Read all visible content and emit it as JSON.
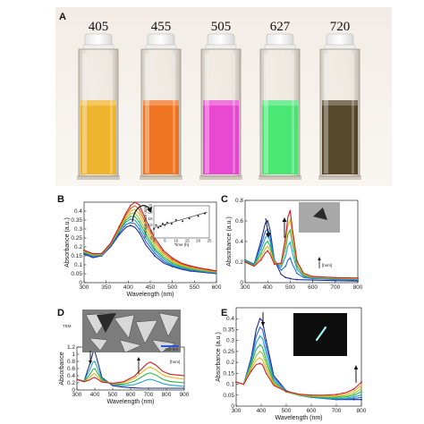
{
  "panels": [
    "A",
    "B",
    "C",
    "D",
    "E"
  ],
  "panelA": {
    "labels": [
      "405",
      "455",
      "505",
      "627",
      "720"
    ],
    "liquid_colors": [
      "#f0b020",
      "#f06a12",
      "#e83ad0",
      "#3ce66a",
      "#4a3a1c"
    ]
  },
  "insetB": {
    "ylabel": "Average Size (nm)",
    "xlabel": "Time (h)"
  },
  "labelC": "[hom]",
  "labelD": {
    "tem": "TEM",
    "scale": "200 nm",
    "arrow": "[hom]"
  },
  "chart_data": [
    {
      "panel": "B",
      "type": "line",
      "xlabel": "Wavelength (nm)",
      "ylabel": "Absorbance (a.u.)",
      "xlim": [
        300,
        600
      ],
      "ylim": [
        0,
        0.45
      ],
      "xticks": [
        300,
        350,
        400,
        450,
        500,
        550,
        600
      ],
      "yticks": [
        0,
        0.05,
        0.1,
        0.15,
        0.2,
        0.25,
        0.3,
        0.35,
        0.4
      ],
      "x": [
        300,
        320,
        340,
        360,
        380,
        395,
        405,
        415,
        425,
        440,
        460,
        480,
        500,
        520,
        540,
        560,
        580,
        600
      ],
      "series": [
        {
          "color": "#1f2b8a",
          "values": [
            0.16,
            0.14,
            0.15,
            0.2,
            0.27,
            0.31,
            0.32,
            0.31,
            0.28,
            0.21,
            0.15,
            0.11,
            0.09,
            0.075,
            0.065,
            0.06,
            0.055,
            0.05
          ]
        },
        {
          "color": "#2a6ad8",
          "values": [
            0.165,
            0.145,
            0.152,
            0.205,
            0.28,
            0.325,
            0.335,
            0.33,
            0.3,
            0.23,
            0.165,
            0.12,
            0.095,
            0.08,
            0.07,
            0.064,
            0.058,
            0.053
          ]
        },
        {
          "color": "#23a3c8",
          "values": [
            0.17,
            0.15,
            0.155,
            0.21,
            0.29,
            0.34,
            0.355,
            0.35,
            0.32,
            0.25,
            0.18,
            0.13,
            0.1,
            0.085,
            0.074,
            0.067,
            0.061,
            0.056
          ]
        },
        {
          "color": "#2cb24a",
          "values": [
            0.172,
            0.152,
            0.157,
            0.212,
            0.295,
            0.35,
            0.37,
            0.37,
            0.34,
            0.27,
            0.19,
            0.14,
            0.108,
            0.09,
            0.078,
            0.07,
            0.064,
            0.058
          ]
        },
        {
          "color": "#9cc43a",
          "values": [
            0.175,
            0.155,
            0.158,
            0.214,
            0.3,
            0.36,
            0.385,
            0.39,
            0.36,
            0.29,
            0.205,
            0.15,
            0.115,
            0.095,
            0.082,
            0.073,
            0.066,
            0.06
          ]
        },
        {
          "color": "#e8b420",
          "values": [
            0.178,
            0.157,
            0.16,
            0.216,
            0.305,
            0.37,
            0.4,
            0.41,
            0.385,
            0.31,
            0.22,
            0.16,
            0.123,
            0.1,
            0.086,
            0.076,
            0.069,
            0.062
          ]
        },
        {
          "color": "#e0641c",
          "values": [
            0.18,
            0.16,
            0.162,
            0.218,
            0.31,
            0.38,
            0.415,
            0.43,
            0.41,
            0.33,
            0.235,
            0.17,
            0.13,
            0.105,
            0.09,
            0.08,
            0.072,
            0.064
          ]
        },
        {
          "color": "#c81e28",
          "values": [
            0.182,
            0.162,
            0.163,
            0.22,
            0.315,
            0.39,
            0.43,
            0.45,
            0.435,
            0.35,
            0.25,
            0.18,
            0.138,
            0.11,
            0.094,
            0.083,
            0.074,
            0.066
          ]
        }
      ],
      "inset": {
        "type": "scatter",
        "xlim": [
          0,
          25
        ],
        "ylim": [
          0,
          25
        ],
        "xticks": [
          0,
          5,
          10,
          15,
          20,
          25
        ],
        "yticks": [
          0,
          5,
          10,
          15,
          20,
          25
        ],
        "x": [
          0,
          1,
          2,
          3,
          4,
          5,
          6,
          8,
          10,
          13,
          16,
          20,
          23
        ],
        "y": [
          7,
          10,
          8,
          9,
          11,
          10,
          12,
          11,
          14,
          13,
          15,
          17,
          19
        ],
        "fit": [
          [
            0,
            8
          ],
          [
            24,
            20
          ]
        ]
      }
    },
    {
      "panel": "C",
      "type": "line",
      "ylabel": "Absorbance (a.u.)",
      "xlim": [
        300,
        800
      ],
      "ylim": [
        0,
        0.8
      ],
      "xticks": [
        300,
        400,
        500,
        600,
        700,
        800
      ],
      "yticks": [
        0,
        0.2,
        0.4,
        0.6,
        0.8
      ],
      "x": [
        300,
        340,
        370,
        390,
        400,
        410,
        430,
        460,
        480,
        490,
        500,
        510,
        530,
        560,
        600,
        650,
        700,
        750,
        800
      ],
      "series": [
        {
          "color": "#1f2b8a",
          "values": [
            0.22,
            0.18,
            0.4,
            0.58,
            0.6,
            0.52,
            0.22,
            0.08,
            0.05,
            0.045,
            0.04,
            0.035,
            0.03,
            0.028,
            0.025,
            0.022,
            0.02,
            0.018,
            0.016
          ]
        },
        {
          "color": "#2a6ad8",
          "values": [
            0.22,
            0.18,
            0.36,
            0.5,
            0.52,
            0.46,
            0.22,
            0.12,
            0.16,
            0.22,
            0.24,
            0.18,
            0.09,
            0.05,
            0.04,
            0.035,
            0.03,
            0.028,
            0.025
          ]
        },
        {
          "color": "#23a3c8",
          "values": [
            0.21,
            0.17,
            0.32,
            0.44,
            0.46,
            0.41,
            0.21,
            0.15,
            0.26,
            0.36,
            0.39,
            0.29,
            0.13,
            0.06,
            0.045,
            0.04,
            0.035,
            0.032,
            0.03
          ]
        },
        {
          "color": "#2cb24a",
          "values": [
            0.21,
            0.17,
            0.28,
            0.38,
            0.4,
            0.36,
            0.2,
            0.17,
            0.34,
            0.47,
            0.51,
            0.38,
            0.16,
            0.07,
            0.05,
            0.045,
            0.04,
            0.037,
            0.035
          ]
        },
        {
          "color": "#e8b420",
          "values": [
            0.2,
            0.16,
            0.25,
            0.33,
            0.35,
            0.32,
            0.19,
            0.18,
            0.4,
            0.56,
            0.61,
            0.45,
            0.19,
            0.08,
            0.055,
            0.05,
            0.046,
            0.042,
            0.04
          ]
        },
        {
          "color": "#c81e28",
          "values": [
            0.2,
            0.16,
            0.22,
            0.29,
            0.31,
            0.28,
            0.18,
            0.19,
            0.45,
            0.64,
            0.7,
            0.52,
            0.21,
            0.09,
            0.06,
            0.055,
            0.05,
            0.047,
            0.045
          ]
        }
      ]
    },
    {
      "panel": "D",
      "type": "line",
      "xlabel": "Wavelength (nm)",
      "ylabel": "Absorbance",
      "xlim": [
        300,
        900
      ],
      "ylim": [
        0,
        1.2
      ],
      "xticks": [
        300,
        400,
        500,
        600,
        700,
        800,
        900
      ],
      "yticks": [
        0,
        0.2,
        0.4,
        0.6,
        0.8,
        1.0,
        1.2
      ],
      "x": [
        300,
        340,
        370,
        390,
        400,
        410,
        440,
        500,
        560,
        620,
        660,
        690,
        710,
        740,
        780,
        820,
        860,
        900
      ],
      "series": [
        {
          "color": "#1f2b8a",
          "values": [
            0.3,
            0.25,
            0.7,
            1.05,
            1.08,
            0.9,
            0.35,
            0.12,
            0.08,
            0.06,
            0.05,
            0.05,
            0.05,
            0.05,
            0.05,
            0.05,
            0.05,
            0.05
          ]
        },
        {
          "color": "#23a3c8",
          "values": [
            0.3,
            0.25,
            0.55,
            0.78,
            0.8,
            0.68,
            0.3,
            0.15,
            0.12,
            0.15,
            0.22,
            0.28,
            0.3,
            0.26,
            0.18,
            0.14,
            0.12,
            0.1
          ]
        },
        {
          "color": "#2cb24a",
          "values": [
            0.3,
            0.24,
            0.42,
            0.58,
            0.6,
            0.52,
            0.27,
            0.17,
            0.16,
            0.24,
            0.36,
            0.45,
            0.48,
            0.42,
            0.3,
            0.24,
            0.22,
            0.2
          ]
        },
        {
          "color": "#e8b420",
          "values": [
            0.29,
            0.24,
            0.34,
            0.44,
            0.46,
            0.4,
            0.24,
            0.18,
            0.2,
            0.32,
            0.48,
            0.6,
            0.64,
            0.57,
            0.42,
            0.36,
            0.33,
            0.3
          ]
        },
        {
          "color": "#c81e28",
          "values": [
            0.29,
            0.23,
            0.28,
            0.34,
            0.35,
            0.32,
            0.22,
            0.19,
            0.23,
            0.38,
            0.58,
            0.73,
            0.78,
            0.7,
            0.52,
            0.44,
            0.42,
            0.4
          ]
        }
      ]
    },
    {
      "panel": "E",
      "type": "line",
      "xlabel": "Wavelength (nm)",
      "ylabel": "Absorbance (a.u.)",
      "xlim": [
        300,
        800
      ],
      "ylim": [
        0,
        0.45
      ],
      "xticks": [
        300,
        400,
        500,
        600,
        700,
        800
      ],
      "yticks": [
        0,
        0.05,
        0.1,
        0.15,
        0.2,
        0.25,
        0.3,
        0.35,
        0.4
      ],
      "x": [
        300,
        330,
        360,
        380,
        395,
        405,
        420,
        450,
        500,
        550,
        600,
        650,
        700,
        740,
        770,
        790,
        800
      ],
      "series": [
        {
          "color": "#1f2b8a",
          "values": [
            0.11,
            0.1,
            0.22,
            0.35,
            0.4,
            0.39,
            0.3,
            0.14,
            0.07,
            0.05,
            0.04,
            0.035,
            0.03,
            0.03,
            0.03,
            0.03,
            0.03
          ]
        },
        {
          "color": "#2a6ad8",
          "values": [
            0.11,
            0.1,
            0.21,
            0.32,
            0.36,
            0.35,
            0.27,
            0.13,
            0.07,
            0.05,
            0.04,
            0.035,
            0.032,
            0.032,
            0.035,
            0.038,
            0.04
          ]
        },
        {
          "color": "#23a3c8",
          "values": [
            0.11,
            0.1,
            0.2,
            0.29,
            0.32,
            0.31,
            0.24,
            0.12,
            0.065,
            0.05,
            0.042,
            0.037,
            0.035,
            0.036,
            0.042,
            0.048,
            0.052
          ]
        },
        {
          "color": "#2cb24a",
          "values": [
            0.11,
            0.1,
            0.19,
            0.26,
            0.28,
            0.27,
            0.21,
            0.11,
            0.065,
            0.05,
            0.043,
            0.04,
            0.04,
            0.042,
            0.05,
            0.06,
            0.066
          ]
        },
        {
          "color": "#9cc43a",
          "values": [
            0.11,
            0.1,
            0.18,
            0.23,
            0.25,
            0.24,
            0.19,
            0.105,
            0.065,
            0.052,
            0.045,
            0.043,
            0.044,
            0.048,
            0.058,
            0.072,
            0.08
          ]
        },
        {
          "color": "#e8b420",
          "values": [
            0.11,
            0.1,
            0.17,
            0.21,
            0.22,
            0.21,
            0.17,
            0.1,
            0.066,
            0.053,
            0.047,
            0.046,
            0.048,
            0.055,
            0.068,
            0.085,
            0.095
          ]
        },
        {
          "color": "#c81e28",
          "values": [
            0.11,
            0.1,
            0.16,
            0.19,
            0.195,
            0.19,
            0.15,
            0.095,
            0.067,
            0.055,
            0.05,
            0.05,
            0.053,
            0.062,
            0.078,
            0.098,
            0.11
          ]
        }
      ]
    }
  ]
}
